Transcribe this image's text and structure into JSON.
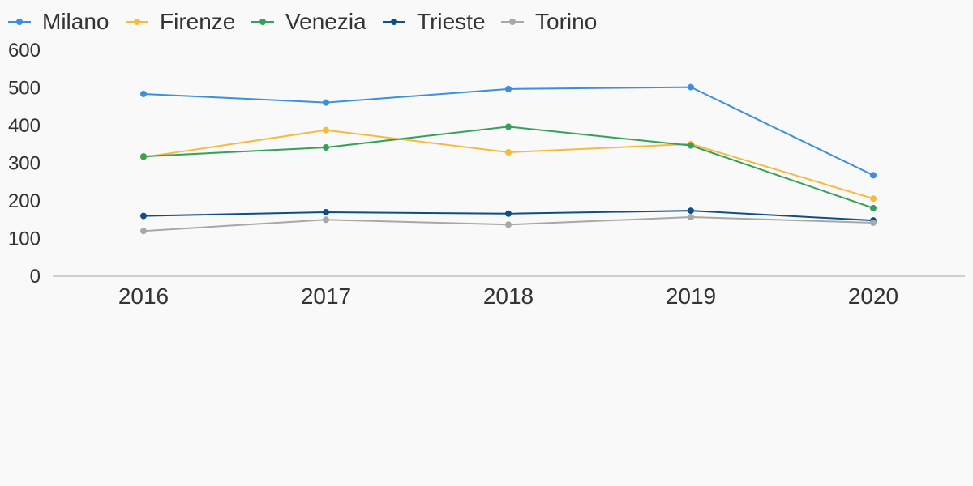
{
  "chart_data": {
    "type": "line",
    "title": "",
    "xlabel": "",
    "ylabel": "",
    "categories": [
      "2016",
      "2017",
      "2018",
      "2019",
      "2020"
    ],
    "ylim": [
      0,
      600
    ],
    "yticks": [
      0,
      100,
      200,
      300,
      400,
      500,
      600
    ],
    "grid": false,
    "legend": "top-left",
    "series": [
      {
        "name": "Milano",
        "color": "#3b8fe0",
        "values": [
          484,
          461,
          497,
          502,
          268
        ]
      },
      {
        "name": "Firenze",
        "color": "#f7b93e",
        "values": [
          316,
          388,
          329,
          351,
          206
        ]
      },
      {
        "name": "Venezia",
        "color": "#34a05a",
        "values": [
          318,
          342,
          397,
          347,
          181
        ]
      },
      {
        "name": "Trieste",
        "color": "#0d4f8a",
        "values": [
          160,
          170,
          166,
          174,
          148
        ]
      },
      {
        "name": "Torino",
        "color": "#a8a8a8",
        "values": [
          120,
          150,
          137,
          157,
          142
        ]
      }
    ]
  }
}
